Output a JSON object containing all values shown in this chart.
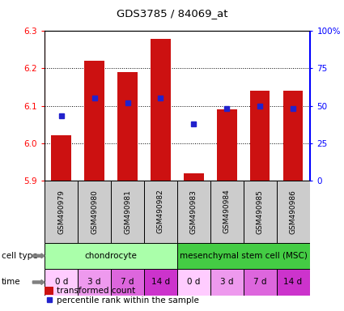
{
  "title": "GDS3785 / 84069_at",
  "samples": [
    "GSM490979",
    "GSM490980",
    "GSM490981",
    "GSM490982",
    "GSM490983",
    "GSM490984",
    "GSM490985",
    "GSM490986"
  ],
  "bar_values": [
    6.02,
    6.22,
    6.19,
    6.28,
    5.92,
    6.09,
    6.14,
    6.14
  ],
  "blue_values": [
    43,
    55,
    52,
    55,
    38,
    48,
    50,
    48
  ],
  "ylim_left": [
    5.9,
    6.3
  ],
  "ylim_right": [
    0,
    100
  ],
  "yticks_left": [
    5.9,
    6.0,
    6.1,
    6.2,
    6.3
  ],
  "yticks_right": [
    0,
    25,
    50,
    75,
    100
  ],
  "bar_color": "#cc1111",
  "blue_color": "#2222cc",
  "bar_bottom": 5.9,
  "bar_width": 0.6,
  "cell_types": [
    {
      "label": "chondrocyte",
      "start": 0,
      "end": 4,
      "color": "#aaffaa"
    },
    {
      "label": "mesenchymal stem cell (MSC)",
      "start": 4,
      "end": 8,
      "color": "#44cc44"
    }
  ],
  "time_labels": [
    "0 d",
    "3 d",
    "7 d",
    "14 d",
    "0 d",
    "3 d",
    "7 d",
    "14 d"
  ],
  "time_colors": [
    "#ffccff",
    "#ee99ee",
    "#dd66dd",
    "#cc33cc",
    "#ffccff",
    "#ee99ee",
    "#dd66dd",
    "#cc33cc"
  ],
  "sample_box_color": "#cccccc",
  "cell_type_label": "cell type",
  "time_label": "time",
  "legend_red": "transformed count",
  "legend_blue": "percentile rank within the sample"
}
